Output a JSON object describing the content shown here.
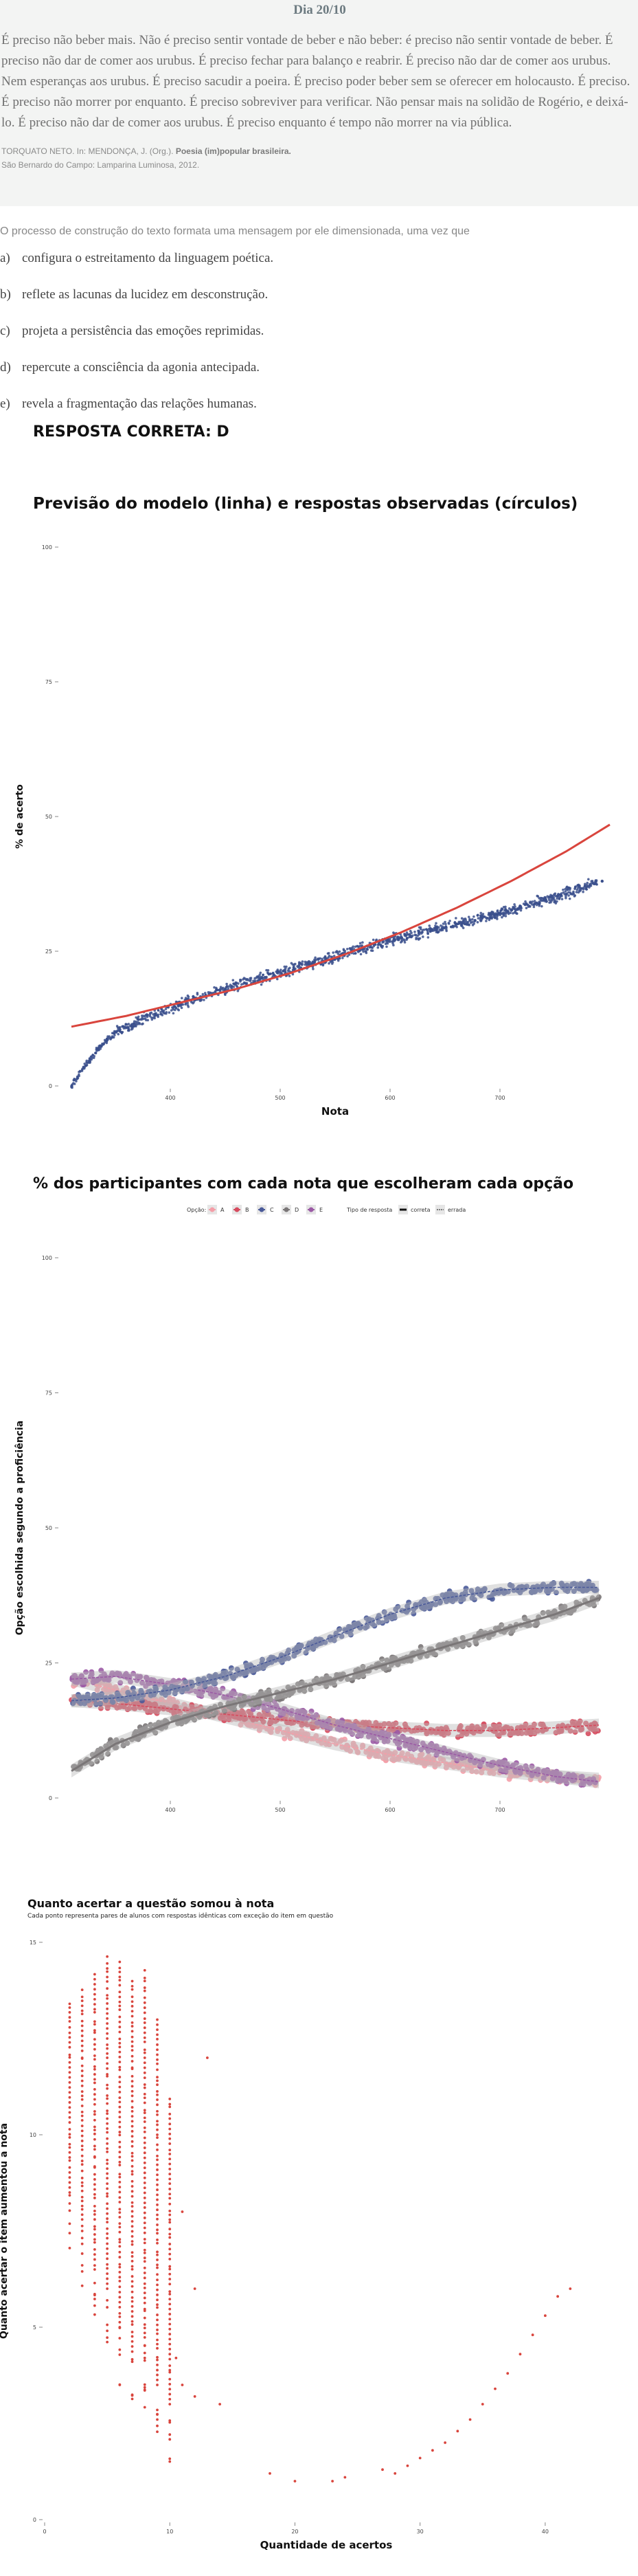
{
  "day_title": "Dia 20/10",
  "quote": "É preciso não beber mais. Não é preciso sentir vontade de beber e não beber: é preciso não sentir vontade de beber. É preciso não dar de comer aos urubus. É preciso fechar para balanço e reabrir. É preciso não dar de comer aos urubus. Nem esperanças aos urubus. É preciso sacudir a poeira. É preciso poder beber sem se oferecer em holocausto. É preciso. É preciso não morrer por enquanto. É preciso sobreviver para verificar. Não pensar mais na solidão de Rogério, e deixá-lo. É preciso não dar de comer aos urubus. É preciso enquanto é tempo não morrer na via pública.",
  "source_line1_prefix": "TORQUATO NETO. In: MENDONÇA, J. (Org.).",
  "source_line1_bold": "Poesia (im)popular brasileira.",
  "source_line2": "São Bernardo do Campo: Lamparina Luminosa, 2012.",
  "question": "O processo de construção do texto formata uma mensagem por ele dimensionada, uma vez que",
  "alternatives": [
    {
      "letter": "a)",
      "text": "configura o estreitamento da linguagem poética."
    },
    {
      "letter": "b)",
      "text": "reflete as lacunas da lucidez em desconstrução."
    },
    {
      "letter": "c)",
      "text": "projeta a persistência das emoções reprimidas."
    },
    {
      "letter": "d)",
      "text": "repercute a consciência da agonia antecipada."
    },
    {
      "letter": "e)",
      "text": "revela a fragmentação das relações humanas."
    }
  ],
  "answer": "RESPOSTA CORRETA: D",
  "colors": {
    "model_line": "#d9453d",
    "observed": "#3a4f8c",
    "A": "#f49ea8",
    "B": "#d64b5e",
    "C": "#4a5a99",
    "D": "#7a7677",
    "E": "#9b5aa5",
    "chart3_points": "#d9453d"
  },
  "chart_data": [
    {
      "type": "scatter",
      "title": "Previsão do modelo (linha) e respostas observadas (círculos)",
      "xlabel": "Nota",
      "ylabel": "% de acerto",
      "xlim": [
        300,
        800
      ],
      "ylim": [
        0,
        100
      ],
      "x_ticks": [
        400,
        500,
        600,
        700
      ],
      "y_ticks": [
        0,
        25,
        50,
        75,
        100
      ],
      "model_line": {
        "x": [
          310,
          360,
          410,
          460,
          510,
          560,
          610,
          660,
          710,
          760,
          800
        ],
        "y": [
          11,
          13,
          15.5,
          18,
          21,
          24.5,
          28.5,
          33,
          38,
          43.5,
          48.5
        ]
      },
      "observed_trend": {
        "x": [
          310,
          320,
          335,
          350,
          370,
          400,
          450,
          500,
          550,
          600,
          650,
          700,
          750,
          790
        ],
        "y": [
          0,
          3,
          7,
          10,
          12,
          14.5,
          18,
          21,
          24,
          27,
          29.5,
          32,
          35,
          38
        ]
      },
      "grid": false
    },
    {
      "type": "line",
      "title": "% dos participantes com cada nota que escolheram cada opção",
      "xlabel": "Nota",
      "ylabel": "Opção escolhida segundo a proficiência",
      "xlim": [
        300,
        800
      ],
      "ylim": [
        0,
        100
      ],
      "x_ticks": [
        400,
        500,
        600,
        700
      ],
      "y_ticks": [
        0,
        25,
        50,
        75,
        100
      ],
      "legend_option_title": "Opção:",
      "legend_type_title": "Tipo de resposta",
      "legend_type_items": [
        "correta",
        "errada"
      ],
      "legend_position": "top",
      "x": [
        310,
        350,
        400,
        450,
        500,
        550,
        600,
        650,
        700,
        750,
        790
      ],
      "series": [
        {
          "name": "A",
          "correct": false,
          "values": [
            22,
            20,
            17.5,
            15,
            12.5,
            10,
            8,
            6.5,
            5,
            4,
            3.5
          ]
        },
        {
          "name": "B",
          "correct": false,
          "values": [
            18,
            17.5,
            16.5,
            15.5,
            14.5,
            13.5,
            13,
            12.5,
            12.5,
            13,
            13.5
          ]
        },
        {
          "name": "C",
          "correct": false,
          "values": [
            18,
            18.5,
            20,
            22.5,
            26,
            30,
            34,
            37,
            38.5,
            39,
            39
          ]
        },
        {
          "name": "D",
          "correct": true,
          "values": [
            5,
            10,
            14,
            17,
            19.5,
            22,
            25,
            28,
            31,
            34,
            37
          ]
        },
        {
          "name": "E",
          "correct": false,
          "values": [
            22,
            22.5,
            21,
            19,
            16.5,
            13.5,
            11,
            8.5,
            6,
            4,
            3
          ]
        }
      ],
      "grid": false
    },
    {
      "type": "scatter",
      "title": "Quanto acertar a questão somou à nota",
      "subtitle": "Cada ponto representa pares de alunos com respostas idênticas com exceção do item em questão",
      "xlabel": "Quantidade de acertos",
      "ylabel": "Quanto acertar o item aumentou a nota",
      "xlim": [
        0,
        45
      ],
      "ylim": [
        0,
        15
      ],
      "x_ticks": [
        0,
        10,
        20,
        30,
        40
      ],
      "y_ticks": [
        0,
        5,
        10,
        15
      ],
      "columns": [
        {
          "x": 2,
          "ymin": 8.5,
          "ymax": 13.5
        },
        {
          "x": 3,
          "ymin": 7.5,
          "ymax": 13.8
        },
        {
          "x": 4,
          "ymin": 6.5,
          "ymax": 14.3
        },
        {
          "x": 5,
          "ymin": 6,
          "ymax": 14.7
        },
        {
          "x": 6,
          "ymin": 5,
          "ymax": 14.5
        },
        {
          "x": 7,
          "ymin": 4.5,
          "ymax": 14
        },
        {
          "x": 8,
          "ymin": 4.2,
          "ymax": 14.3
        },
        {
          "x": 9,
          "ymin": 3.5,
          "ymax": 13
        },
        {
          "x": 10,
          "ymin": 3,
          "ymax": 11
        }
      ],
      "isolated": [
        {
          "x": 8,
          "y": 15.7
        },
        {
          "x": 10.5,
          "y": 4.2
        },
        {
          "x": 11,
          "y": 3.5
        },
        {
          "x": 11,
          "y": 8
        },
        {
          "x": 12,
          "y": 6
        },
        {
          "x": 12,
          "y": 3.2
        },
        {
          "x": 13,
          "y": 12
        },
        {
          "x": 14,
          "y": 3
        },
        {
          "x": 18,
          "y": 1.2
        },
        {
          "x": 20,
          "y": 1
        },
        {
          "x": 23,
          "y": 1
        },
        {
          "x": 24,
          "y": 1.1
        },
        {
          "x": 27,
          "y": 1.3
        },
        {
          "x": 28,
          "y": 1.2
        },
        {
          "x": 29,
          "y": 1.4
        },
        {
          "x": 30,
          "y": 1.6
        },
        {
          "x": 31,
          "y": 1.8
        },
        {
          "x": 32,
          "y": 2.0
        },
        {
          "x": 33,
          "y": 2.3
        },
        {
          "x": 34,
          "y": 2.6
        },
        {
          "x": 35,
          "y": 3.0
        },
        {
          "x": 36,
          "y": 3.4
        },
        {
          "x": 37,
          "y": 3.8
        },
        {
          "x": 38,
          "y": 4.3
        },
        {
          "x": 39,
          "y": 4.8
        },
        {
          "x": 40,
          "y": 5.3
        },
        {
          "x": 41,
          "y": 5.8
        },
        {
          "x": 42,
          "y": 6.0
        }
      ],
      "grid": false
    }
  ]
}
